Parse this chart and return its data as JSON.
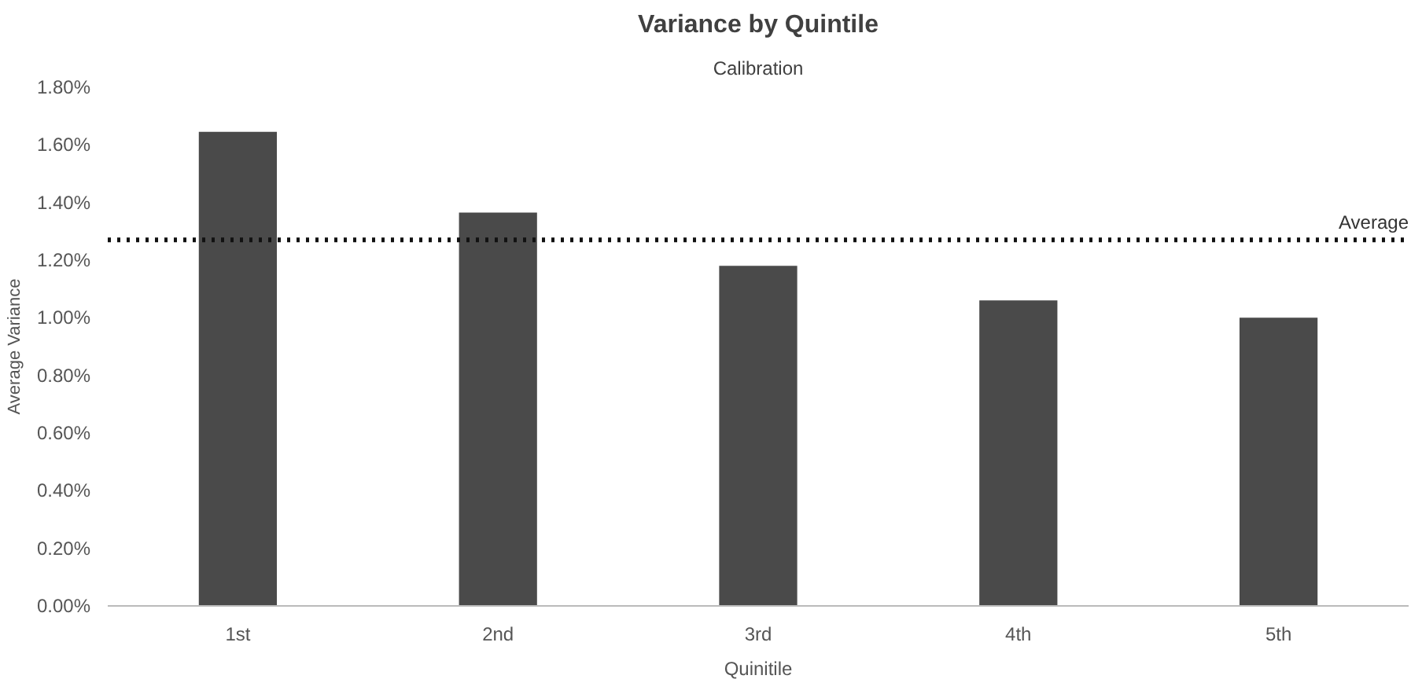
{
  "chart_data": {
    "type": "bar",
    "title": "Variance by Quintile",
    "subtitle": "Calibration",
    "xlabel": "Quinitile",
    "ylabel": "Average Variance",
    "categories": [
      "1st",
      "2nd",
      "3rd",
      "4th",
      "5th"
    ],
    "values": [
      1.645,
      1.365,
      1.18,
      1.06,
      1.0
    ],
    "color": "#4a4a4a",
    "ylim": [
      0,
      1.8
    ],
    "yticks": [
      {
        "value": 0,
        "label": "0.00%"
      },
      {
        "value": 0.2,
        "label": "0.20%"
      },
      {
        "value": 0.4,
        "label": "0.40%"
      },
      {
        "value": 0.6,
        "label": "0.60%"
      },
      {
        "value": 0.8,
        "label": "0.80%"
      },
      {
        "value": 1.0,
        "label": "1.00%"
      },
      {
        "value": 1.2,
        "label": "1.20%"
      },
      {
        "value": 1.4,
        "label": "1.40%"
      },
      {
        "value": 1.6,
        "label": "1.60%"
      },
      {
        "value": 1.8,
        "label": "1.80%"
      }
    ],
    "ref_lines": [
      {
        "axis": "y",
        "value": 1.27,
        "label": "Average",
        "color": "#111111",
        "line_style": "dotted"
      }
    ],
    "grid": false
  }
}
